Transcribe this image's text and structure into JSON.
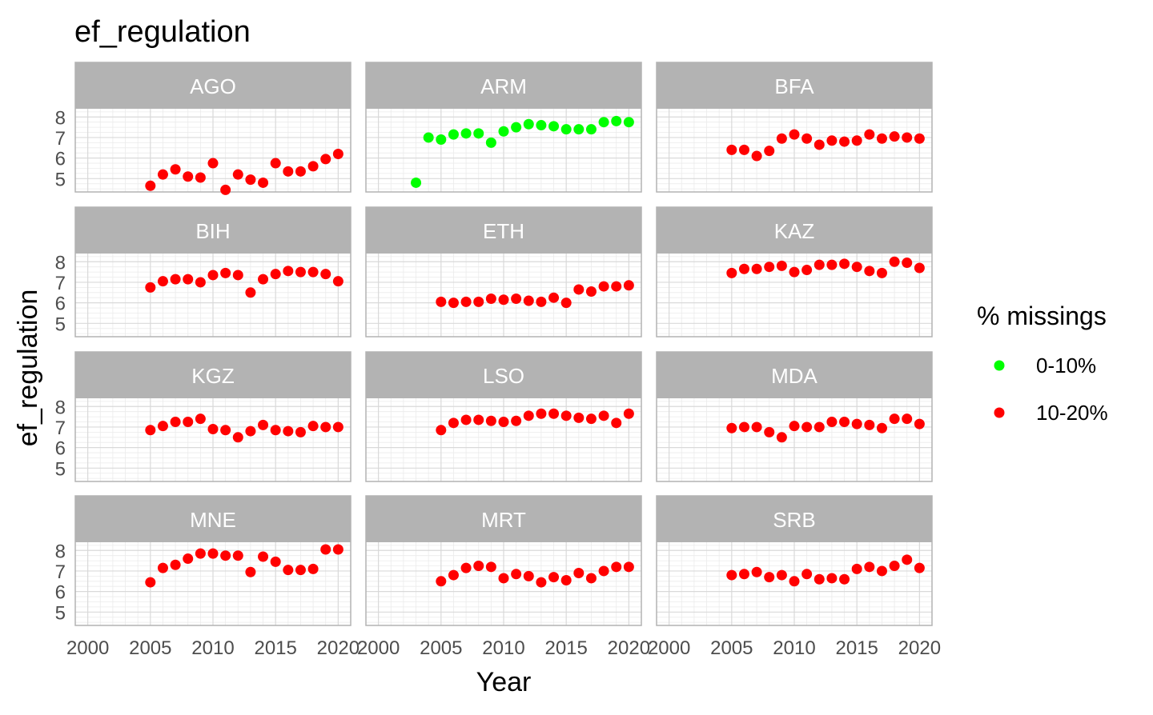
{
  "chart_data": {
    "type": "scatter",
    "title": "ef_regulation",
    "xlabel": "Year",
    "ylabel": "ef_regulation",
    "xlim": [
      1999,
      2021
    ],
    "ylim": [
      4.35,
      8.4
    ],
    "x_ticks": [
      2000,
      2005,
      2010,
      2015,
      2020
    ],
    "y_ticks": [
      5,
      6,
      7,
      8
    ],
    "legend": {
      "title": "% missings",
      "position": "right",
      "entries": [
        {
          "label": "0-10%",
          "color": "#00ff00"
        },
        {
          "label": "10-20%",
          "color": "#ff0000"
        }
      ]
    },
    "strip_color": "#b3b3b3",
    "panels": [
      {
        "name": "AGO",
        "group": "10-20%",
        "x": [
          2005,
          2006,
          2007,
          2008,
          2009,
          2010,
          2011,
          2012,
          2013,
          2014,
          2015,
          2016,
          2017,
          2018,
          2019,
          2020
        ],
        "y": [
          4.65,
          5.2,
          5.45,
          5.1,
          5.05,
          5.75,
          4.45,
          5.2,
          4.95,
          4.8,
          5.75,
          5.35,
          5.35,
          5.6,
          5.95,
          6.2
        ]
      },
      {
        "name": "ARM",
        "group": "0-10%",
        "x": [
          2003,
          2004,
          2005,
          2006,
          2007,
          2008,
          2009,
          2010,
          2011,
          2012,
          2013,
          2014,
          2015,
          2016,
          2017,
          2018,
          2019,
          2020
        ],
        "y": [
          4.8,
          7.0,
          6.9,
          7.15,
          7.2,
          7.2,
          6.75,
          7.3,
          7.5,
          7.65,
          7.6,
          7.55,
          7.4,
          7.4,
          7.4,
          7.75,
          7.8,
          7.75
        ]
      },
      {
        "name": "BFA",
        "group": "10-20%",
        "x": [
          2005,
          2006,
          2007,
          2008,
          2009,
          2010,
          2011,
          2012,
          2013,
          2014,
          2015,
          2016,
          2017,
          2018,
          2019,
          2020
        ],
        "y": [
          6.4,
          6.4,
          6.1,
          6.35,
          6.95,
          7.15,
          6.95,
          6.65,
          6.85,
          6.8,
          6.85,
          7.15,
          6.95,
          7.05,
          7.0,
          6.95
        ]
      },
      {
        "name": "BIH",
        "group": "10-20%",
        "x": [
          2005,
          2006,
          2007,
          2008,
          2009,
          2010,
          2011,
          2012,
          2013,
          2014,
          2015,
          2016,
          2017,
          2018,
          2019,
          2020
        ],
        "y": [
          6.75,
          7.05,
          7.15,
          7.15,
          7.0,
          7.35,
          7.45,
          7.35,
          6.5,
          7.15,
          7.4,
          7.55,
          7.5,
          7.5,
          7.4,
          7.05
        ]
      },
      {
        "name": "ETH",
        "group": "10-20%",
        "x": [
          2005,
          2006,
          2007,
          2008,
          2009,
          2010,
          2011,
          2012,
          2013,
          2014,
          2015,
          2016,
          2017,
          2018,
          2019,
          2020
        ],
        "y": [
          6.05,
          6.0,
          6.05,
          6.05,
          6.2,
          6.15,
          6.2,
          6.1,
          6.05,
          6.25,
          6.0,
          6.65,
          6.55,
          6.8,
          6.8,
          6.85
        ]
      },
      {
        "name": "KAZ",
        "group": "10-20%",
        "x": [
          2005,
          2006,
          2007,
          2008,
          2009,
          2010,
          2011,
          2012,
          2013,
          2014,
          2015,
          2016,
          2017,
          2018,
          2019,
          2020
        ],
        "y": [
          7.45,
          7.65,
          7.65,
          7.75,
          7.8,
          7.5,
          7.6,
          7.85,
          7.85,
          7.9,
          7.75,
          7.55,
          7.45,
          8.0,
          7.95,
          7.7
        ]
      },
      {
        "name": "KGZ",
        "group": "10-20%",
        "x": [
          2005,
          2006,
          2007,
          2008,
          2009,
          2010,
          2011,
          2012,
          2013,
          2014,
          2015,
          2016,
          2017,
          2018,
          2019,
          2020
        ],
        "y": [
          6.85,
          7.05,
          7.25,
          7.25,
          7.4,
          6.9,
          6.85,
          6.5,
          6.8,
          7.1,
          6.85,
          6.8,
          6.75,
          7.05,
          7.0,
          7.0
        ]
      },
      {
        "name": "LSO",
        "group": "10-20%",
        "x": [
          2005,
          2006,
          2007,
          2008,
          2009,
          2010,
          2011,
          2012,
          2013,
          2014,
          2015,
          2016,
          2017,
          2018,
          2019,
          2020
        ],
        "y": [
          6.85,
          7.2,
          7.35,
          7.35,
          7.3,
          7.25,
          7.3,
          7.55,
          7.65,
          7.65,
          7.55,
          7.45,
          7.4,
          7.55,
          7.2,
          7.65
        ]
      },
      {
        "name": "MDA",
        "group": "10-20%",
        "x": [
          2005,
          2006,
          2007,
          2008,
          2009,
          2010,
          2011,
          2012,
          2013,
          2014,
          2015,
          2016,
          2017,
          2018,
          2019,
          2020
        ],
        "y": [
          6.95,
          7.0,
          7.0,
          6.75,
          6.5,
          7.05,
          7.0,
          7.0,
          7.25,
          7.25,
          7.15,
          7.1,
          6.95,
          7.4,
          7.4,
          7.15
        ]
      },
      {
        "name": "MNE",
        "group": "10-20%",
        "x": [
          2005,
          2006,
          2007,
          2008,
          2009,
          2010,
          2011,
          2012,
          2013,
          2014,
          2015,
          2016,
          2017,
          2018,
          2019,
          2020
        ],
        "y": [
          6.45,
          7.15,
          7.3,
          7.6,
          7.85,
          7.85,
          7.75,
          7.75,
          6.95,
          7.7,
          7.45,
          7.05,
          7.05,
          7.1,
          8.05,
          8.05
        ]
      },
      {
        "name": "MRT",
        "group": "10-20%",
        "x": [
          2005,
          2006,
          2007,
          2008,
          2009,
          2010,
          2011,
          2012,
          2013,
          2014,
          2015,
          2016,
          2017,
          2018,
          2019,
          2020
        ],
        "y": [
          6.5,
          6.8,
          7.15,
          7.25,
          7.2,
          6.65,
          6.85,
          6.75,
          6.45,
          6.7,
          6.55,
          6.9,
          6.65,
          7.0,
          7.2,
          7.2
        ]
      },
      {
        "name": "SRB",
        "group": "10-20%",
        "x": [
          2005,
          2006,
          2007,
          2008,
          2009,
          2010,
          2011,
          2012,
          2013,
          2014,
          2015,
          2016,
          2017,
          2018,
          2019,
          2020
        ],
        "y": [
          6.8,
          6.85,
          6.95,
          6.7,
          6.8,
          6.5,
          6.85,
          6.6,
          6.65,
          6.6,
          7.1,
          7.2,
          7.0,
          7.25,
          7.55,
          7.15
        ]
      }
    ]
  }
}
